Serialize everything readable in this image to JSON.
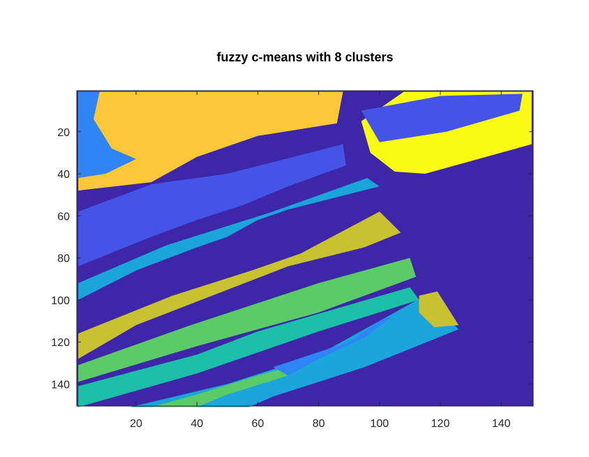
{
  "chart_data": {
    "type": "heatmap",
    "title": "fuzzy c-means with 8 clusters",
    "xlabel": "",
    "ylabel": "",
    "xlim": [
      0.5,
      150.5
    ],
    "ylim": [
      0.5,
      150.5
    ],
    "y_reversed": true,
    "xticks": [
      20,
      40,
      60,
      80,
      100,
      120,
      140
    ],
    "yticks": [
      20,
      40,
      60,
      80,
      100,
      120,
      140
    ],
    "xtick_labels": [
      "20",
      "40",
      "60",
      "80",
      "100",
      "120",
      "140"
    ],
    "ytick_labels": [
      "20",
      "40",
      "60",
      "80",
      "100",
      "120",
      "140"
    ],
    "clusters": 8,
    "colormap": [
      "#3e26a8",
      "#4354e6",
      "#2f84f6",
      "#1ba6db",
      "#1cbfa7",
      "#5acb67",
      "#c9c230",
      "#fcc83a",
      "#f9fb15"
    ],
    "regions": [
      {
        "cluster": 8,
        "points": [
          [
            1,
            1
          ],
          [
            88,
            1
          ],
          [
            86,
            16
          ],
          [
            60,
            22
          ],
          [
            40,
            32
          ],
          [
            25,
            44
          ],
          [
            1,
            48
          ]
        ]
      },
      {
        "cluster": 9,
        "points": [
          [
            108,
            1
          ],
          [
            150,
            1
          ],
          [
            150,
            26
          ],
          [
            115,
            40
          ],
          [
            105,
            39
          ],
          [
            97,
            30
          ],
          [
            94,
            15
          ]
        ]
      },
      {
        "cluster": 2,
        "points": [
          [
            94,
            10
          ],
          [
            120,
            3
          ],
          [
            147,
            2
          ],
          [
            146,
            10
          ],
          [
            122,
            20
          ],
          [
            100,
            25
          ]
        ]
      },
      {
        "cluster": 2,
        "points": [
          [
            1,
            58
          ],
          [
            25,
            45
          ],
          [
            50,
            40
          ],
          [
            88,
            26
          ],
          [
            89,
            36
          ],
          [
            70,
            46
          ],
          [
            55,
            55
          ],
          [
            40,
            62
          ],
          [
            25,
            70
          ],
          [
            1,
            84
          ]
        ]
      },
      {
        "cluster": 3,
        "points": [
          [
            1,
            1
          ],
          [
            8,
            1
          ],
          [
            6,
            14
          ],
          [
            12,
            28
          ],
          [
            20,
            33
          ],
          [
            10,
            40
          ],
          [
            1,
            42
          ]
        ]
      },
      {
        "cluster": 4,
        "points": [
          [
            1,
            92
          ],
          [
            30,
            74
          ],
          [
            65,
            58
          ],
          [
            96,
            42
          ],
          [
            100,
            46
          ],
          [
            70,
            57
          ],
          [
            60,
            62
          ],
          [
            50,
            70
          ],
          [
            40,
            75
          ],
          [
            20,
            86
          ],
          [
            1,
            100
          ]
        ]
      },
      {
        "cluster": 7,
        "points": [
          [
            1,
            116
          ],
          [
            32,
            98
          ],
          [
            58,
            86
          ],
          [
            74,
            78
          ],
          [
            100,
            58
          ],
          [
            107,
            68
          ],
          [
            95,
            75
          ],
          [
            70,
            84
          ],
          [
            45,
            98
          ],
          [
            20,
            112
          ],
          [
            1,
            128
          ]
        ]
      },
      {
        "cluster": 6,
        "points": [
          [
            1,
            131
          ],
          [
            38,
            112
          ],
          [
            80,
            92
          ],
          [
            110,
            80
          ],
          [
            112,
            89
          ],
          [
            80,
            106
          ],
          [
            40,
            122
          ],
          [
            1,
            139
          ]
        ]
      },
      {
        "cluster": 5,
        "points": [
          [
            1,
            141
          ],
          [
            40,
            126
          ],
          [
            60,
            115
          ],
          [
            110,
            94
          ],
          [
            113,
            100
          ],
          [
            80,
            115
          ],
          [
            40,
            135
          ],
          [
            1,
            151
          ]
        ]
      },
      {
        "cluster": 4,
        "points": [
          [
            18,
            151
          ],
          [
            50,
            140
          ],
          [
            80,
            126
          ],
          [
            100,
            110
          ],
          [
            115,
            98
          ],
          [
            126,
            114
          ],
          [
            95,
            132
          ],
          [
            65,
            146
          ],
          [
            57,
            151
          ]
        ]
      },
      {
        "cluster": 7,
        "points": [
          [
            113,
            98
          ],
          [
            119,
            96
          ],
          [
            126,
            112
          ],
          [
            118,
            113
          ],
          [
            113,
            106
          ]
        ]
      },
      {
        "cluster": 6,
        "points": [
          [
            25,
            151
          ],
          [
            40,
            145
          ],
          [
            60,
            136
          ],
          [
            75,
            130
          ],
          [
            70,
            136
          ],
          [
            50,
            145
          ],
          [
            40,
            151
          ]
        ]
      },
      {
        "cluster": 3,
        "points": [
          [
            65,
            132
          ],
          [
            90,
            120
          ],
          [
            100,
            110
          ],
          [
            105,
            107
          ],
          [
            95,
            118
          ],
          [
            80,
            128
          ],
          [
            70,
            136
          ]
        ]
      }
    ]
  }
}
